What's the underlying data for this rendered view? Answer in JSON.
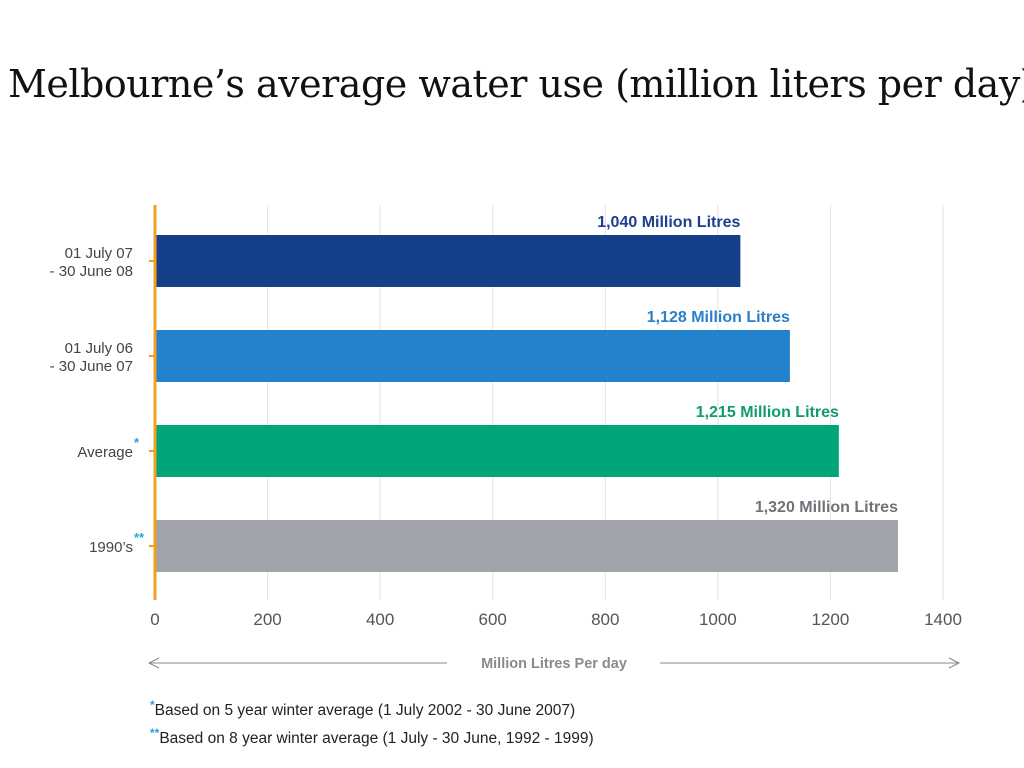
{
  "slide": {
    "title": "Melbourne’s average water use (million liters per day)"
  },
  "chart_data": {
    "type": "bar",
    "orientation": "horizontal",
    "categories": [
      {
        "lines": [
          "01 July 07",
          "- 30 June 08"
        ],
        "mark": ""
      },
      {
        "lines": [
          "01 July 06",
          "- 30 June 07"
        ],
        "mark": ""
      },
      {
        "lines": [
          "Average"
        ],
        "mark": "*"
      },
      {
        "lines": [
          "1990’s"
        ],
        "mark": "**"
      }
    ],
    "values": [
      1040,
      1128,
      1215,
      1320
    ],
    "data_labels": [
      "1,040 Million Litres",
      "1,128 Million Litres",
      "1,215 Million Litres",
      "1,320 Million Litres"
    ],
    "colors": [
      "#163f8a",
      "#2481cc",
      "#00a57a",
      "#a0a4aa"
    ],
    "label_colors": [
      "#1c3f8e",
      "#2a7fc9",
      "#0f9a72",
      "#6f7378"
    ],
    "xlabel": "Million Litres Per day",
    "xlim": [
      0,
      1400
    ],
    "xticks": [
      0,
      200,
      400,
      600,
      800,
      1000,
      1200,
      1400
    ],
    "grid": true,
    "axis_color": "#f0a020",
    "mark_color": "#2a9fd8"
  },
  "footnotes": [
    {
      "mark": "*",
      "text": "Based on 5 year winter average (1 July 2002 - 30 June 2007)"
    },
    {
      "mark": "**",
      "text": "Based on 8 year winter average (1 July - 30 June, 1992 - 1999)"
    }
  ]
}
